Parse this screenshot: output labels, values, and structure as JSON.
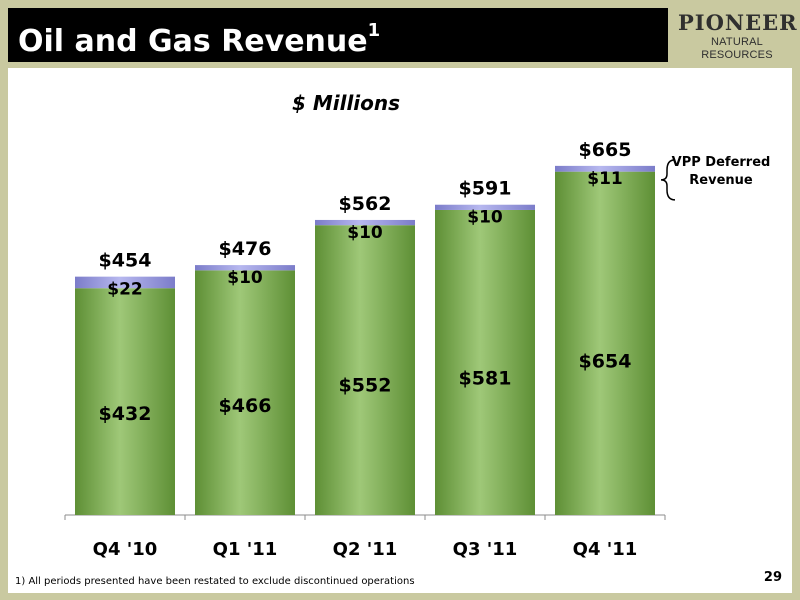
{
  "header": {
    "title": "Oil and Gas Revenue",
    "title_superscript": "1"
  },
  "logo": {
    "name": "PIONEER",
    "subtitle": "NATURAL RESOURCES"
  },
  "chart_data": {
    "type": "bar",
    "stacked": true,
    "title": "$ Millions",
    "categories": [
      "Q4 '10",
      "Q1 '11",
      "Q2 '11",
      "Q3 '11",
      "Q4 '11"
    ],
    "series": [
      {
        "values": [
          432,
          466,
          552,
          581,
          654
        ],
        "labels": [
          "$432",
          "$466",
          "$552",
          "$581",
          "$654"
        ],
        "color": "#7aa84e"
      },
      {
        "values": [
          22,
          10,
          10,
          10,
          11
        ],
        "labels": [
          "$22",
          "$10",
          "$10",
          "$10",
          "$11"
        ],
        "color": "#9a9be0"
      }
    ],
    "totals": [
      454,
      476,
      562,
      591,
      665
    ],
    "total_labels": [
      "$454",
      "$476",
      "$562",
      "$591",
      "$665"
    ],
    "annotation": "VPP Deferred Revenue",
    "ylim": [
      0,
      700
    ],
    "grid": false
  },
  "footer": {
    "footnote": "1)  All periods presented have been restated to exclude discontinued operations",
    "page_number": "29"
  }
}
